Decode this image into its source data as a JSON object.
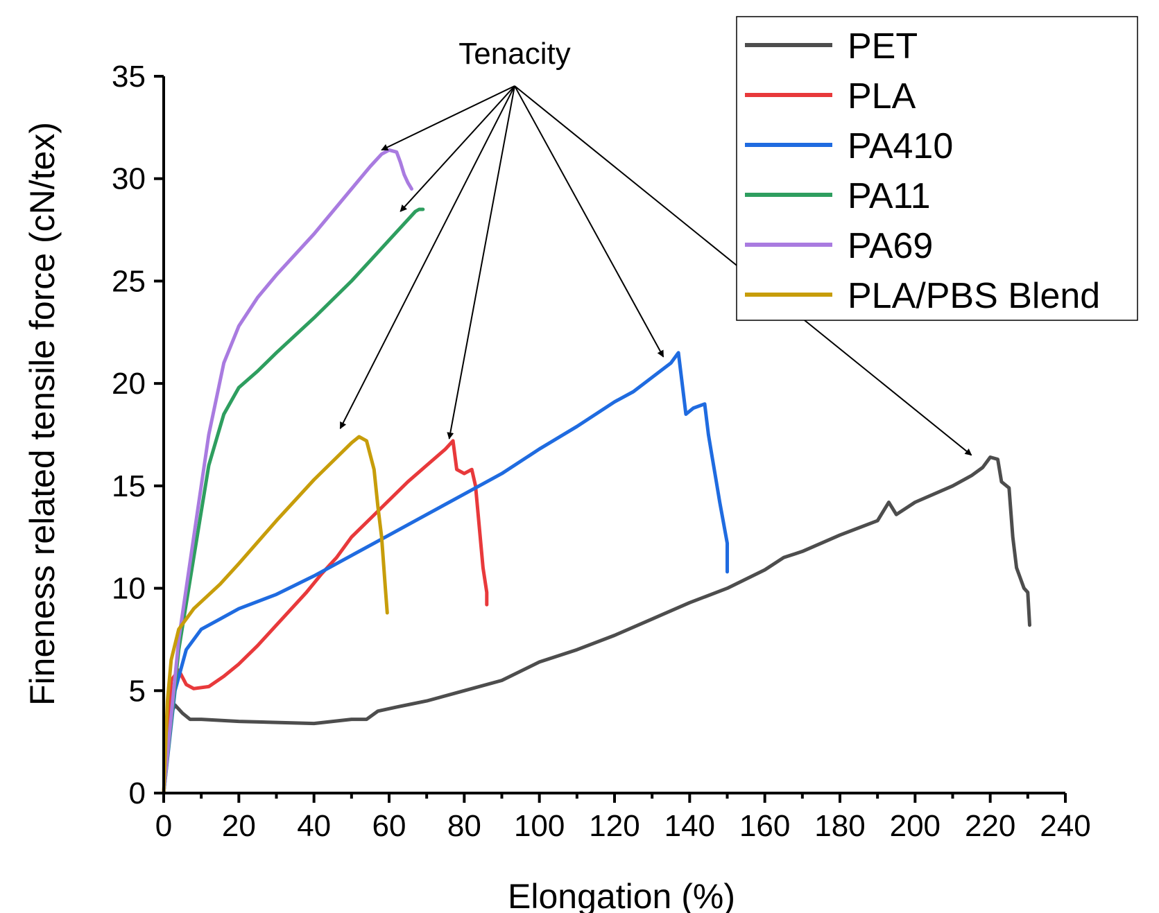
{
  "chart_data": {
    "type": "line",
    "title": "",
    "xlabel": "Elongation (%)",
    "ylabel": "Fineness related tensile force (cN/tex)",
    "xlim": [
      0,
      240
    ],
    "ylim": [
      0,
      35
    ],
    "xticks": [
      0,
      20,
      40,
      60,
      80,
      100,
      120,
      140,
      160,
      180,
      200,
      220,
      240
    ],
    "yticks": [
      0,
      5,
      10,
      15,
      20,
      25,
      30,
      35
    ],
    "grid": false,
    "legend_position": "top-right",
    "annotation": {
      "text": "Tenacity",
      "points_to": [
        {
          "series": "PA69",
          "x": 58,
          "y": 31.4
        },
        {
          "series": "PA11",
          "x": 63,
          "y": 28.4
        },
        {
          "series": "PLA/PBS Blend",
          "x": 47,
          "y": 17.8
        },
        {
          "series": "PLA",
          "x": 76,
          "y": 17.3
        },
        {
          "series": "PA410",
          "x": 133,
          "y": 21.3
        },
        {
          "series": "PET",
          "x": 215,
          "y": 16.5
        }
      ]
    },
    "series": [
      {
        "name": "PET",
        "color": "#4d4d4d",
        "points": [
          [
            0,
            0
          ],
          [
            1,
            3.5
          ],
          [
            3,
            4.3
          ],
          [
            5,
            3.9
          ],
          [
            7,
            3.6
          ],
          [
            10,
            3.6
          ],
          [
            20,
            3.5
          ],
          [
            30,
            3.45
          ],
          [
            40,
            3.4
          ],
          [
            50,
            3.6
          ],
          [
            54,
            3.6
          ],
          [
            57,
            4.0
          ],
          [
            62,
            4.2
          ],
          [
            70,
            4.5
          ],
          [
            80,
            5.0
          ],
          [
            90,
            5.5
          ],
          [
            100,
            6.4
          ],
          [
            110,
            7.0
          ],
          [
            120,
            7.7
          ],
          [
            130,
            8.5
          ],
          [
            140,
            9.3
          ],
          [
            150,
            10.0
          ],
          [
            160,
            10.9
          ],
          [
            165,
            11.5
          ],
          [
            170,
            11.8
          ],
          [
            180,
            12.6
          ],
          [
            190,
            13.3
          ],
          [
            193,
            14.2
          ],
          [
            195,
            13.6
          ],
          [
            200,
            14.2
          ],
          [
            210,
            15.0
          ],
          [
            215,
            15.5
          ],
          [
            218,
            15.9
          ],
          [
            220,
            16.4
          ],
          [
            222,
            16.3
          ],
          [
            223,
            15.2
          ],
          [
            225,
            14.9
          ],
          [
            226,
            12.5
          ],
          [
            227,
            11.0
          ],
          [
            228,
            10.5
          ],
          [
            229,
            10.0
          ],
          [
            230,
            9.8
          ],
          [
            230.5,
            8.2
          ]
        ]
      },
      {
        "name": "PLA",
        "color": "#e8393b",
        "points": [
          [
            0,
            0
          ],
          [
            2,
            5.5
          ],
          [
            4,
            6.0
          ],
          [
            6,
            5.3
          ],
          [
            8,
            5.1
          ],
          [
            12,
            5.2
          ],
          [
            16,
            5.7
          ],
          [
            20,
            6.3
          ],
          [
            25,
            7.2
          ],
          [
            30,
            8.2
          ],
          [
            34,
            9.0
          ],
          [
            38,
            9.8
          ],
          [
            42,
            10.7
          ],
          [
            46,
            11.5
          ],
          [
            50,
            12.5
          ],
          [
            55,
            13.4
          ],
          [
            60,
            14.3
          ],
          [
            65,
            15.2
          ],
          [
            70,
            16.0
          ],
          [
            75,
            16.8
          ],
          [
            77,
            17.2
          ],
          [
            78,
            15.8
          ],
          [
            80,
            15.6
          ],
          [
            82,
            15.8
          ],
          [
            83,
            15.0
          ],
          [
            84,
            13.0
          ],
          [
            85,
            11.0
          ],
          [
            86,
            9.8
          ],
          [
            86,
            9.2
          ]
        ]
      },
      {
        "name": "PA410",
        "color": "#1f6be0",
        "points": [
          [
            0,
            0
          ],
          [
            3,
            5.0
          ],
          [
            6,
            7.0
          ],
          [
            10,
            8.0
          ],
          [
            15,
            8.5
          ],
          [
            20,
            9.0
          ],
          [
            30,
            9.7
          ],
          [
            40,
            10.6
          ],
          [
            50,
            11.6
          ],
          [
            60,
            12.6
          ],
          [
            70,
            13.6
          ],
          [
            80,
            14.6
          ],
          [
            90,
            15.6
          ],
          [
            100,
            16.8
          ],
          [
            110,
            17.9
          ],
          [
            120,
            19.1
          ],
          [
            125,
            19.6
          ],
          [
            130,
            20.3
          ],
          [
            135,
            21.0
          ],
          [
            137,
            21.5
          ],
          [
            138,
            20.0
          ],
          [
            139,
            18.5
          ],
          [
            141,
            18.8
          ],
          [
            144,
            19.0
          ],
          [
            145,
            17.5
          ],
          [
            146,
            16.4
          ],
          [
            147,
            15.3
          ],
          [
            148,
            14.2
          ],
          [
            149,
            13.2
          ],
          [
            150,
            12.2
          ],
          [
            150,
            10.8
          ]
        ]
      },
      {
        "name": "PA11",
        "color": "#2e9e5f",
        "points": [
          [
            0,
            0
          ],
          [
            4,
            7.0
          ],
          [
            8,
            11.5
          ],
          [
            12,
            16.0
          ],
          [
            16,
            18.5
          ],
          [
            20,
            19.8
          ],
          [
            25,
            20.6
          ],
          [
            30,
            21.5
          ],
          [
            40,
            23.2
          ],
          [
            50,
            25.0
          ],
          [
            55,
            26.0
          ],
          [
            60,
            27.0
          ],
          [
            65,
            28.0
          ],
          [
            67,
            28.4
          ],
          [
            68,
            28.5
          ],
          [
            69,
            28.5
          ]
        ]
      },
      {
        "name": "PA69",
        "color": "#a97be0",
        "points": [
          [
            0,
            0
          ],
          [
            4,
            7.5
          ],
          [
            8,
            12.5
          ],
          [
            12,
            17.5
          ],
          [
            16,
            21.0
          ],
          [
            20,
            22.8
          ],
          [
            25,
            24.2
          ],
          [
            30,
            25.3
          ],
          [
            40,
            27.3
          ],
          [
            50,
            29.5
          ],
          [
            55,
            30.6
          ],
          [
            58,
            31.2
          ],
          [
            60,
            31.4
          ],
          [
            62,
            31.3
          ],
          [
            63,
            30.8
          ],
          [
            64,
            30.2
          ],
          [
            65,
            29.8
          ],
          [
            66,
            29.5
          ]
        ]
      },
      {
        "name": "PLA/PBS Blend",
        "color": "#c79d0a",
        "points": [
          [
            0,
            0
          ],
          [
            1,
            4.5
          ],
          [
            2,
            6.5
          ],
          [
            4,
            8.0
          ],
          [
            8,
            9.0
          ],
          [
            15,
            10.2
          ],
          [
            20,
            11.2
          ],
          [
            30,
            13.3
          ],
          [
            40,
            15.3
          ],
          [
            45,
            16.2
          ],
          [
            50,
            17.1
          ],
          [
            52,
            17.4
          ],
          [
            54,
            17.2
          ],
          [
            56,
            15.8
          ],
          [
            57,
            14.0
          ],
          [
            58,
            12.5
          ],
          [
            59,
            10.0
          ],
          [
            59.5,
            8.8
          ]
        ]
      }
    ]
  }
}
